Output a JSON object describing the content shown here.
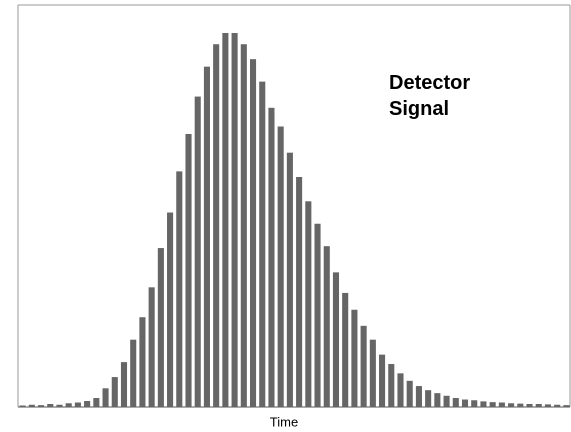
{
  "chart_data": {
    "type": "bar",
    "title": "Detector Signal",
    "x_label": "Time",
    "values": [
      0.4,
      0.6,
      0.5,
      0.8,
      0.6,
      1,
      1.2,
      1.6,
      2.4,
      5,
      8,
      12,
      18,
      24,
      32,
      42.5,
      52,
      63,
      73,
      83,
      91,
      97,
      100,
      100,
      97,
      93,
      87,
      80,
      75,
      68,
      61.5,
      55,
      49,
      43,
      36,
      30.5,
      26,
      21.7,
      18,
      14,
      11.5,
      9,
      7,
      5.6,
      4.5,
      3.7,
      3,
      2.4,
      2,
      1.8,
      1.5,
      1.3,
      1.2,
      1,
      0.9,
      0.8,
      0.8,
      0.7,
      0.6,
      0.5
    ],
    "color": "#666666",
    "ylim": [
      0,
      100
    ]
  }
}
